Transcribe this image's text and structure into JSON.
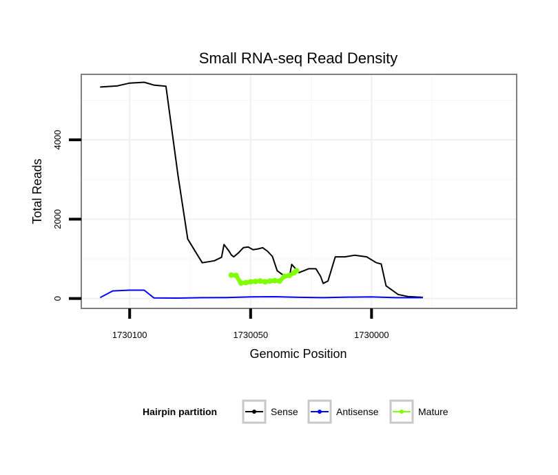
{
  "chart_data": {
    "type": "line",
    "title": "Small RNA-seq Read Density",
    "xlabel": "Genomic Position",
    "ylabel": "Total Reads",
    "x_reversed": true,
    "xlim": [
      1730120,
      1729940
    ],
    "ylim": [
      -250,
      5650
    ],
    "x_ticks": [
      1730100,
      1730050,
      1730000
    ],
    "x_tick_labels": [
      "1730100",
      "1730050",
      "1730000"
    ],
    "y_ticks": [
      0,
      2000,
      4000
    ],
    "y_tick_labels": [
      "0",
      "2000",
      "4000"
    ],
    "grid": true,
    "legend": {
      "title": "Hairpin partition",
      "position": "bottom",
      "entries": [
        "Sense",
        "Antisense",
        "Mature"
      ]
    },
    "series": [
      {
        "name": "Sense",
        "color": "#000000",
        "x": [
          1730112,
          1730105,
          1730100,
          1730094,
          1730090,
          1730085,
          1730080,
          1730076,
          1730072,
          1730070,
          1730065,
          1730062,
          1730061,
          1730059,
          1730058,
          1730057,
          1730055,
          1730053,
          1730051,
          1730049,
          1730047,
          1730045,
          1730043,
          1730041,
          1730039,
          1730037,
          1730034,
          1730033,
          1730030,
          1730026,
          1730023,
          1730021,
          1730020,
          1730018,
          1730015,
          1730011,
          1730007,
          1730002,
          1729998,
          1729996,
          1729994,
          1729989,
          1729985,
          1729979
        ],
        "values": [
          5330,
          5360,
          5430,
          5450,
          5380,
          5350,
          3100,
          1500,
          1100,
          900,
          950,
          1040,
          1360,
          1200,
          1100,
          1050,
          1150,
          1280,
          1300,
          1230,
          1250,
          1280,
          1190,
          1060,
          700,
          610,
          540,
          860,
          650,
          750,
          750,
          550,
          380,
          440,
          1050,
          1050,
          1090,
          1050,
          900,
          870,
          320,
          100,
          50,
          30
        ]
      },
      {
        "name": "Antisense",
        "color": "#0000ff",
        "x": [
          1730112,
          1730107,
          1730100,
          1730094,
          1730090,
          1730080,
          1730070,
          1730060,
          1730050,
          1730040,
          1730030,
          1730020,
          1730010,
          1730000,
          1729990,
          1729979
        ],
        "values": [
          30,
          190,
          210,
          210,
          15,
          10,
          20,
          25,
          40,
          45,
          30,
          20,
          35,
          40,
          20,
          20
        ]
      },
      {
        "name": "Mature",
        "color": "#7fff00",
        "x": [
          1730058,
          1730056,
          1730054,
          1730052,
          1730050,
          1730048,
          1730046,
          1730044,
          1730042,
          1730040,
          1730038,
          1730036,
          1730034,
          1730032,
          1730031
        ],
        "values": [
          590,
          580,
          390,
          400,
          420,
          430,
          440,
          420,
          440,
          450,
          440,
          560,
          580,
          650,
          700
        ]
      }
    ]
  }
}
